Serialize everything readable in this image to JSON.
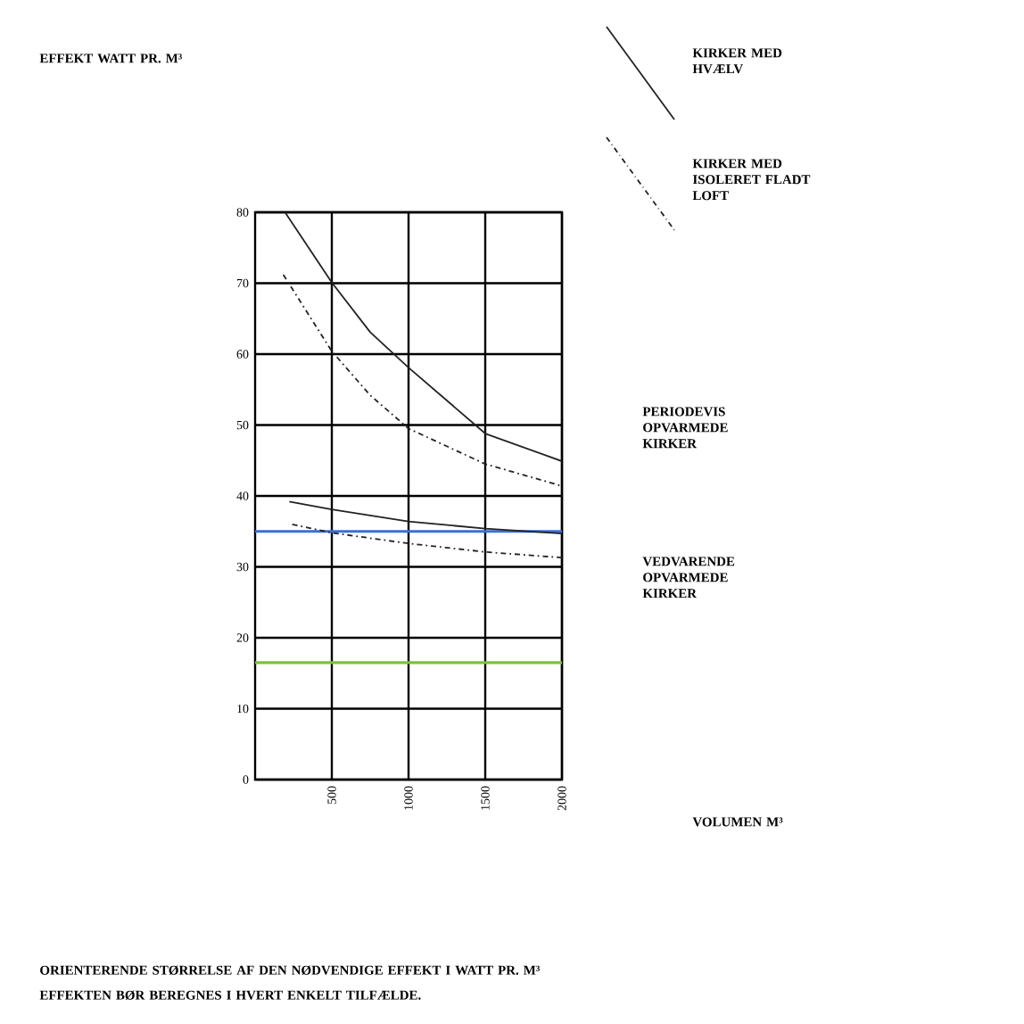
{
  "chart_data": {
    "type": "line",
    "xlim": [
      0,
      2000
    ],
    "xticks": [
      500,
      1000,
      1500,
      2000
    ],
    "ylim": [
      0,
      80
    ],
    "yticks": [
      0,
      10,
      20,
      30,
      40,
      50,
      60,
      70,
      80
    ],
    "grid": true,
    "legend": "top right",
    "marker": "none",
    "series": [
      {
        "name": "KIRKER MED HVÆLV",
        "color": "#222222",
        "line_style": "solid",
        "x": [
          195,
          500,
          750,
          1000,
          1500,
          2000
        ],
        "values": [
          80,
          70.1,
          63.1,
          58.1,
          48.8,
          44.9
        ]
      },
      {
        "name": "KIRKER MED ISOLERET FLADT LOFT",
        "color": "#222222",
        "line_style": "dashed",
        "x": [
          184,
          500,
          750,
          1000,
          1500,
          2000
        ],
        "values": [
          71.2,
          60.4,
          54.2,
          49.5,
          44.5,
          41.4
        ]
      },
      {
        "color": "#222222",
        "line_style": "solid",
        "x": [
          223,
          500,
          1000,
          1500,
          2000
        ],
        "values": [
          39.2,
          38.1,
          36.4,
          35.4,
          34.7
        ]
      },
      {
        "color": "#222222",
        "line_style": "dashed",
        "x": [
          242,
          500,
          1000,
          1500,
          2000
        ],
        "values": [
          36.0,
          34.8,
          33.3,
          32.1,
          31.3
        ]
      }
    ],
    "ref_lines": [
      {
        "axis": "y",
        "value": 35,
        "color": "#3a6fd8"
      },
      {
        "axis": "y",
        "value": 16.5,
        "color": "#7cc040"
      }
    ],
    "annotations": [
      "EFFEKT WATT PR. M³",
      "PERIODEVIS OPVARMEDE KIRKER",
      "VEDVARENDE OPVARMEDE KIRKER",
      "VOLUMEN M³",
      "ORIENTERENDE STØRRELSE AF DEN NØDVENDIGE EFFEKT I WATT PR. M³",
      "EFFEKTEN BØR BEREGNES I HVERT ENKELT TILFÆLDE."
    ]
  }
}
